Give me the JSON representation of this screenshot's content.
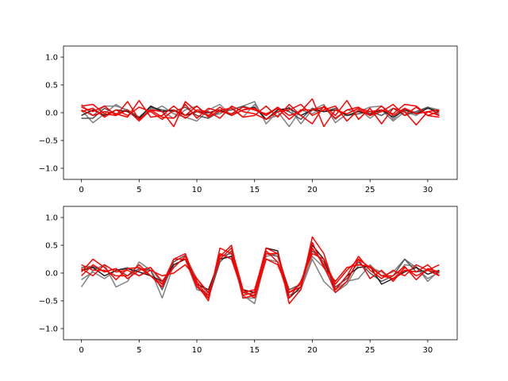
{
  "chart_data": [
    {
      "type": "line",
      "title": "",
      "xlabel": "",
      "ylabel": "",
      "xlim": [
        -1.55,
        32.55
      ],
      "ylim": [
        -1.2,
        1.2
      ],
      "x_ticks": [
        0,
        5,
        10,
        15,
        20,
        25,
        30
      ],
      "y_ticks": [
        -1.0,
        -0.5,
        0.0,
        0.5,
        1.0
      ],
      "x_tick_labels": [
        "0",
        "5",
        "10",
        "15",
        "20",
        "25",
        "30"
      ],
      "y_tick_labels": [
        "−1.0",
        "−0.5",
        "0.0",
        "0.5",
        "1.0"
      ],
      "grid": false,
      "x": [
        0,
        1,
        2,
        3,
        4,
        5,
        6,
        7,
        8,
        9,
        10,
        11,
        12,
        13,
        14,
        15,
        16,
        17,
        18,
        19,
        20,
        21,
        22,
        23,
        24,
        25,
        26,
        27,
        28,
        29,
        30,
        31
      ],
      "series": [
        {
          "color": "#808080",
          "values": [
            0.15,
            -0.05,
            0.12,
            0.12,
            0.05,
            -0.08,
            0.02,
            0.12,
            -0.02,
            -0.08,
            -0.15,
            0.05,
            0.15,
            -0.05,
            0.12,
            0.2,
            -0.2,
            0.02,
            -0.25,
            0.05,
            -0.02,
            0.1,
            -0.12,
            0.05,
            0.02,
            0.1,
            0.12,
            -0.12,
            0.08,
            0.0,
            0.1,
            0.05
          ]
        },
        {
          "color": "#808080",
          "values": [
            0.05,
            -0.18,
            -0.02,
            0.15,
            0.02,
            -0.12,
            0.08,
            0.02,
            -0.1,
            0.05,
            0.12,
            -0.05,
            -0.02,
            0.1,
            -0.08,
            0.15,
            -0.12,
            -0.05,
            0.1,
            -0.2,
            0.05,
            0.15,
            -0.18,
            -0.02,
            0.08,
            -0.1,
            0.05,
            -0.15,
            0.02,
            -0.05,
            0.1,
            -0.02
          ]
        },
        {
          "color": "#555555",
          "values": [
            -0.1,
            -0.1,
            0.08,
            -0.02,
            0.05,
            -0.08,
            0.1,
            0.05,
            0.02,
            0.1,
            -0.05,
            -0.1,
            0.02,
            0.05,
            0.12,
            0.05,
            -0.05,
            0.08,
            0.02,
            -0.12,
            0.08,
            0.02,
            0.08,
            -0.05,
            -0.02,
            0.02,
            -0.05,
            0.08,
            -0.05,
            0.02,
            0.1,
            -0.05
          ]
        },
        {
          "color": "#222222",
          "values": [
            -0.05,
            0.05,
            -0.05,
            0.05,
            0.02,
            -0.1,
            0.12,
            0.02,
            0.05,
            -0.05,
            0.02,
            0.0,
            0.05,
            -0.05,
            0.05,
            0.1,
            -0.12,
            0.05,
            0.08,
            -0.05,
            0.05,
            0.02,
            0.05,
            -0.05,
            0.02,
            -0.02,
            0.05,
            -0.08,
            0.05,
            -0.02,
            0.08,
            0.02
          ]
        },
        {
          "color": "#ff0000",
          "values": [
            0.1,
            0.02,
            0.12,
            -0.05,
            0.05,
            -0.15,
            0.05,
            0.02,
            -0.25,
            0.2,
            0.02,
            -0.05,
            0.1,
            -0.05,
            0.05,
            0.08,
            -0.05,
            0.1,
            -0.05,
            0.02,
            0.25,
            -0.25,
            0.05,
            -0.02,
            0.08,
            0.02,
            0.05,
            -0.02,
            0.15,
            0.12,
            -0.05,
            -0.08
          ]
        },
        {
          "color": "#ff0000",
          "values": [
            0.05,
            -0.05,
            0.02,
            -0.02,
            -0.08,
            0.22,
            -0.08,
            -0.05,
            0.12,
            -0.05,
            0.12,
            -0.08,
            0.05,
            0.08,
            -0.08,
            -0.05,
            0.12,
            -0.08,
            0.15,
            -0.05,
            -0.2,
            0.12,
            -0.05,
            0.22,
            -0.12,
            0.08,
            -0.2,
            0.08,
            0.02,
            -0.22,
            0.02,
            0.05
          ]
        },
        {
          "color": "#ff0000",
          "values": [
            0.12,
            0.15,
            -0.02,
            -0.05,
            0.2,
            -0.12,
            0.05,
            -0.08,
            -0.1,
            0.15,
            -0.1,
            0.08,
            0.02,
            -0.02,
            0.1,
            0.05,
            -0.02,
            0.08,
            -0.12,
            0.05,
            0.05,
            0.1,
            -0.1,
            0.05,
            0.1,
            -0.05,
            0.02,
            0.15,
            -0.05,
            0.1,
            -0.05,
            0.02
          ]
        },
        {
          "color": "#ff0000",
          "values": [
            0.02,
            0.08,
            -0.08,
            0.05,
            -0.05,
            0.1,
            0.02,
            -0.12,
            0.05,
            -0.1,
            0.05,
            0.02,
            -0.1,
            0.12,
            0.02,
            -0.02,
            -0.12,
            0.02,
            0.05,
            0.15,
            -0.05,
            0.05,
            0.12,
            -0.15,
            0.05,
            -0.05,
            0.12,
            -0.05,
            0.08,
            -0.02,
            0.02,
            -0.05
          ]
        }
      ]
    },
    {
      "type": "line",
      "title": "",
      "xlabel": "",
      "ylabel": "",
      "xlim": [
        -1.55,
        32.55
      ],
      "ylim": [
        -1.2,
        1.2
      ],
      "x_ticks": [
        0,
        5,
        10,
        15,
        20,
        25,
        30
      ],
      "y_ticks": [
        -1.0,
        -0.5,
        0.0,
        0.5,
        1.0
      ],
      "x_tick_labels": [
        "0",
        "5",
        "10",
        "15",
        "20",
        "25",
        "30"
      ],
      "y_tick_labels": [
        "−1.0",
        "−0.5",
        "0.0",
        "0.5",
        "1.0"
      ],
      "grid": false,
      "x": [
        0,
        1,
        2,
        3,
        4,
        5,
        6,
        7,
        8,
        9,
        10,
        11,
        12,
        13,
        14,
        15,
        16,
        17,
        18,
        19,
        20,
        21,
        22,
        23,
        24,
        25,
        26,
        27,
        28,
        29,
        30,
        31
      ],
      "series": [
        {
          "color": "#808080",
          "values": [
            -0.25,
            0.05,
            0.15,
            -0.25,
            -0.15,
            0.2,
            0.05,
            -0.45,
            0.15,
            0.25,
            -0.3,
            -0.35,
            0.25,
            0.3,
            -0.4,
            -0.55,
            0.3,
            0.35,
            -0.4,
            -0.3,
            0.25,
            -0.15,
            -0.35,
            -0.2,
            0.15,
            0.1,
            0.02,
            -0.12,
            0.15,
            0.12,
            -0.15,
            0.05
          ]
        },
        {
          "color": "#808080",
          "values": [
            -0.12,
            0.02,
            -0.1,
            0.05,
            0.1,
            -0.05,
            0.1,
            -0.2,
            0.1,
            0.3,
            -0.1,
            -0.4,
            0.3,
            0.35,
            -0.45,
            -0.45,
            0.25,
            0.2,
            -0.35,
            -0.25,
            0.3,
            0.1,
            -0.3,
            -0.15,
            -0.1,
            0.15,
            -0.05,
            0.02,
            0.25,
            0.1,
            -0.1,
            0.02
          ]
        },
        {
          "color": "#555555",
          "values": [
            0.1,
            0.12,
            0.02,
            0.08,
            -0.05,
            0.08,
            0.05,
            -0.3,
            0.2,
            0.32,
            -0.25,
            -0.45,
            0.2,
            0.4,
            -0.35,
            -0.4,
            0.35,
            0.3,
            -0.3,
            -0.2,
            0.4,
            0.2,
            -0.25,
            -0.1,
            0.2,
            0.0,
            -0.15,
            -0.05,
            0.25,
            0.02,
            0.05,
            0.0
          ]
        },
        {
          "color": "#222222",
          "values": [
            0.05,
            0.1,
            -0.05,
            0.05,
            0.08,
            0.02,
            -0.05,
            -0.15,
            0.15,
            0.25,
            -0.2,
            -0.3,
            0.25,
            0.3,
            -0.3,
            -0.35,
            0.45,
            0.4,
            -0.45,
            -0.25,
            0.5,
            0.25,
            -0.3,
            -0.05,
            0.1,
            0.12,
            -0.2,
            -0.1,
            0.02,
            0.1,
            -0.02,
            0.05
          ]
        },
        {
          "color": "#ff0000",
          "values": [
            0.15,
            0.05,
            0.05,
            -0.05,
            -0.05,
            0.15,
            -0.05,
            -0.2,
            0.25,
            0.35,
            -0.2,
            -0.5,
            0.45,
            0.35,
            -0.4,
            -0.35,
            0.45,
            0.35,
            -0.55,
            -0.3,
            0.65,
            0.35,
            -0.3,
            -0.05,
            0.3,
            0.05,
            -0.1,
            0.05,
            -0.05,
            0.15,
            0.05,
            -0.05
          ]
        },
        {
          "color": "#ff0000",
          "values": [
            0.02,
            0.25,
            0.1,
            -0.12,
            0.08,
            0.1,
            -0.05,
            -0.25,
            0.25,
            0.25,
            -0.25,
            -0.4,
            0.3,
            0.5,
            -0.45,
            -0.4,
            0.35,
            0.35,
            -0.35,
            -0.25,
            0.45,
            0.15,
            -0.35,
            -0.15,
            0.25,
            0.1,
            -0.05,
            -0.1,
            0.05,
            0.02,
            0.15,
            -0.05
          ]
        },
        {
          "color": "#ff0000",
          "values": [
            -0.05,
            0.15,
            0.02,
            0.08,
            -0.1,
            0.05,
            0.1,
            -0.15,
            0.1,
            0.3,
            -0.15,
            -0.45,
            0.35,
            0.25,
            -0.35,
            -0.3,
            0.4,
            0.2,
            -0.45,
            -0.15,
            0.35,
            0.25,
            -0.2,
            0.05,
            0.25,
            -0.1,
            0.05,
            -0.15,
            0.1,
            -0.05,
            0.05,
            0.15
          ]
        },
        {
          "color": "#ff0000",
          "values": [
            0.08,
            -0.05,
            0.15,
            0.02,
            0.05,
            -0.05,
            0.05,
            -0.05,
            0.0,
            0.15,
            -0.1,
            -0.35,
            0.25,
            0.45,
            -0.3,
            -0.45,
            0.25,
            0.15,
            -0.35,
            -0.2,
            0.55,
            0.1,
            -0.15,
            0.1,
            0.15,
            0.12,
            -0.05,
            -0.05,
            0.12,
            -0.12,
            0.08,
            0.02
          ]
        }
      ]
    }
  ]
}
